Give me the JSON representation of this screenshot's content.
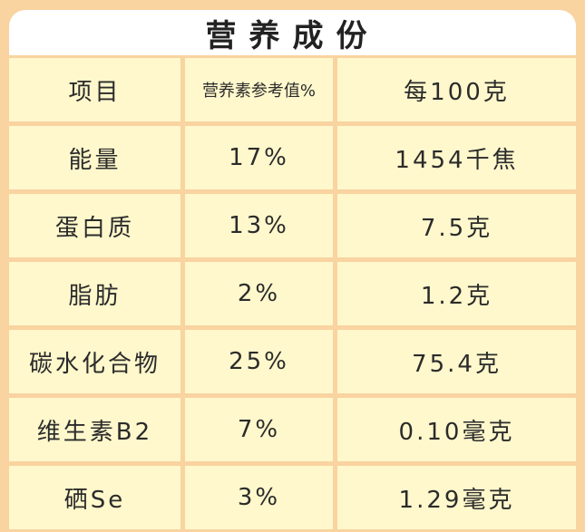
{
  "title": "营养成份",
  "header": [
    "项目",
    "营养素参考值%",
    "每100克"
  ],
  "rows": [
    [
      "能量",
      "17%",
      "1454千焦"
    ],
    [
      "蛋白质",
      "13%",
      "7.5克"
    ],
    [
      "脂肪",
      "2%",
      "1.2克"
    ],
    [
      "碳水化合物",
      "25%",
      "75.4克"
    ],
    [
      "维生素B2",
      "7%",
      "0.10毫克"
    ],
    [
      "硒Se",
      "3%",
      "1.29毫克"
    ]
  ]
}
